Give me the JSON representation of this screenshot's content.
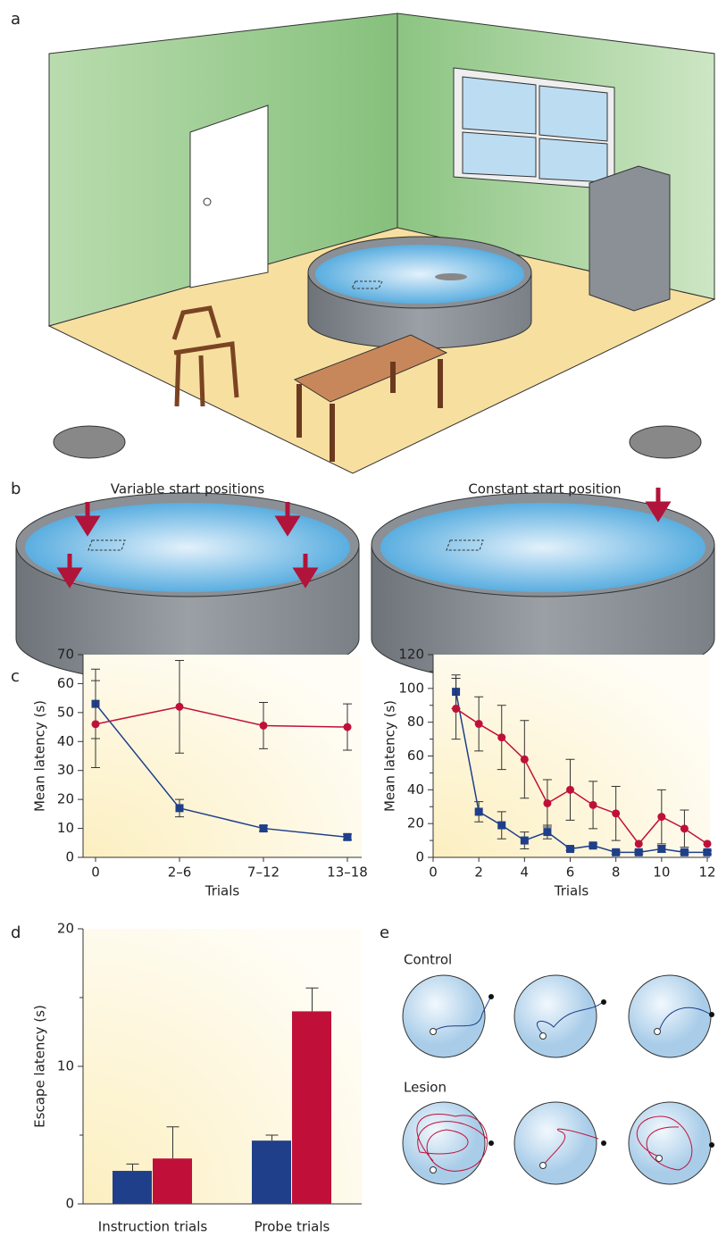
{
  "panels": {
    "a": "a",
    "b": "b",
    "c": "c",
    "d": "d",
    "e": "e"
  },
  "pool_labels": {
    "variable": "Variable start positions",
    "constant": "Constant start position"
  },
  "path_labels": {
    "control": "Control",
    "lesion": "Lesion"
  },
  "chart_data": [
    {
      "type": "line",
      "ylabel": "Mean latency (s)",
      "xlabel": "Trials",
      "categories": [
        "0",
        "2–6",
        "7–12",
        "13–18"
      ],
      "ylim": [
        0,
        70
      ],
      "yticks": [
        0,
        10,
        20,
        30,
        40,
        50,
        60,
        70
      ],
      "series": [
        {
          "color": "#1f3f8a",
          "marker": "square",
          "values": [
            53,
            17,
            10,
            7
          ],
          "errors": [
            12,
            3,
            1,
            1
          ]
        },
        {
          "color": "#c0103a",
          "marker": "circle",
          "values": [
            46,
            52,
            45.5,
            45
          ],
          "errors": [
            15,
            16,
            8,
            8
          ]
        }
      ]
    },
    {
      "type": "line",
      "ylabel": "Mean latency (s)",
      "xlabel": "Trials",
      "x": [
        1,
        2,
        3,
        4,
        5,
        6,
        7,
        8,
        9,
        10,
        11,
        12
      ],
      "xlim": [
        0,
        12
      ],
      "xticks": [
        0,
        2,
        4,
        6,
        8,
        10,
        12
      ],
      "ylim": [
        0,
        120
      ],
      "yticks": [
        0,
        20,
        40,
        60,
        80,
        100,
        120
      ],
      "minor_yticks": [
        10,
        30,
        50,
        70,
        90,
        110
      ],
      "series": [
        {
          "color": "#1f3f8a",
          "marker": "square",
          "values": [
            98,
            27,
            19,
            10,
            15,
            5,
            7,
            3,
            3,
            5,
            3,
            3
          ],
          "errors": [
            10,
            6,
            8,
            5,
            4,
            1,
            1,
            1,
            1,
            2,
            1,
            1
          ]
        },
        {
          "color": "#c0103a",
          "marker": "circle",
          "values": [
            88,
            79,
            71,
            58,
            32,
            40,
            31,
            26,
            8,
            24,
            17,
            8
          ],
          "errors": [
            18,
            16,
            19,
            23,
            14,
            18,
            14,
            16,
            0,
            16,
            11,
            0
          ]
        }
      ]
    },
    {
      "type": "bar",
      "ylabel": "Escape latency (s)",
      "categories": [
        "Instruction trials",
        "Probe trials"
      ],
      "ylim": [
        0,
        20
      ],
      "yticks": [
        0,
        10,
        20
      ],
      "minor_yticks": [
        5,
        15
      ],
      "series": [
        {
          "color": "#1f3f8a",
          "values": [
            2.4,
            4.6
          ],
          "errors": [
            0.5,
            0.4
          ]
        },
        {
          "color": "#c0103a",
          "values": [
            3.3,
            14
          ],
          "errors": [
            2.3,
            1.7
          ]
        }
      ]
    }
  ]
}
